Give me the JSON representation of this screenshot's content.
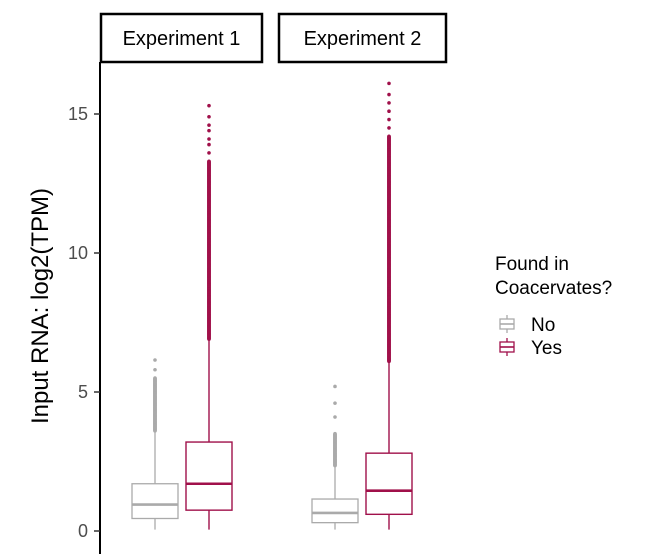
{
  "chart_data": {
    "type": "boxplot",
    "ylabel": "Input RNA: log2(TPM)",
    "ylim": [
      -0.25,
      16.5
    ],
    "yticks": [
      0,
      5,
      10,
      15
    ],
    "facets": [
      "Experiment 1",
      "Experiment 2"
    ],
    "legend": {
      "title_lines": [
        "Found in",
        "Coacervates?"
      ],
      "position": "right"
    },
    "series": [
      {
        "name": "No",
        "color": "#aaaaaa"
      },
      {
        "name": "Yes",
        "color": "#a0104a"
      }
    ],
    "boxes": [
      {
        "facet": "Experiment 1",
        "group": "No",
        "min": 0.05,
        "q1": 0.45,
        "median": 0.95,
        "q3": 1.7,
        "whisker_high": 3.6,
        "outlier_range": [
          3.6,
          5.5
        ],
        "extreme_outliers": [
          5.8,
          6.15
        ]
      },
      {
        "facet": "Experiment 1",
        "group": "Yes",
        "min": 0.05,
        "q1": 0.75,
        "median": 1.7,
        "q3": 3.2,
        "whisker_high": 6.9,
        "outlier_range": [
          6.9,
          13.3
        ],
        "extreme_outliers": [
          13.6,
          13.9,
          14.1,
          14.4,
          14.6,
          14.9,
          15.3
        ]
      },
      {
        "facet": "Experiment 2",
        "group": "No",
        "min": 0.05,
        "q1": 0.3,
        "median": 0.65,
        "q3": 1.15,
        "whisker_high": 2.35,
        "outlier_range": [
          2.35,
          3.5
        ],
        "extreme_outliers": [
          4.1,
          4.6,
          5.2
        ]
      },
      {
        "facet": "Experiment 2",
        "group": "Yes",
        "min": 0.05,
        "q1": 0.6,
        "median": 1.45,
        "q3": 2.8,
        "whisker_high": 6.1,
        "outlier_range": [
          6.1,
          14.2
        ],
        "extreme_outliers": [
          14.5,
          14.8,
          15.1,
          15.4,
          15.7,
          16.1
        ]
      }
    ]
  }
}
